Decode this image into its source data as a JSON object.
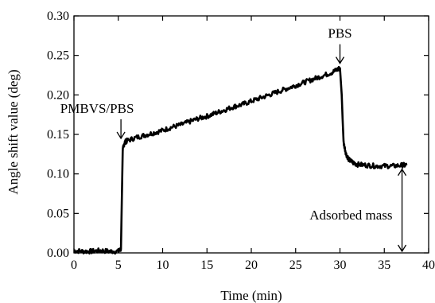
{
  "chart_data": {
    "type": "line",
    "xlabel": "Time (min)",
    "ylabel": "Angle shift value (deg)",
    "xlim": [
      0,
      40
    ],
    "ylim": [
      0,
      0.3
    ],
    "x_ticks": [
      "0",
      "5",
      "10",
      "15",
      "20",
      "25",
      "30",
      "35",
      "40"
    ],
    "y_ticks": [
      "0.00",
      "0.05",
      "0.10",
      "0.15",
      "0.20",
      "0.25",
      "0.30"
    ],
    "grid": false,
    "legend": "none",
    "line_color": "#000000",
    "series": [
      {
        "x": [
          0,
          1,
          2,
          3,
          4,
          5,
          5.3,
          5.5,
          5.7,
          6,
          7,
          8,
          9,
          10,
          11,
          12,
          13,
          14,
          15,
          16,
          17,
          18,
          19,
          20,
          21,
          22,
          23,
          24,
          25,
          26,
          27,
          28,
          29,
          29.7,
          30.0,
          30.2,
          30.4,
          30.7,
          31,
          31.5,
          32,
          33,
          34,
          35,
          36,
          37,
          37.5
        ],
        "y": [
          0.003,
          0.002,
          0.002,
          0.003,
          0.002,
          0.002,
          0.005,
          0.13,
          0.14,
          0.142,
          0.146,
          0.149,
          0.152,
          0.155,
          0.159,
          0.162,
          0.166,
          0.17,
          0.173,
          0.177,
          0.181,
          0.185,
          0.188,
          0.192,
          0.196,
          0.2,
          0.204,
          0.208,
          0.212,
          0.216,
          0.22,
          0.224,
          0.228,
          0.232,
          0.234,
          0.2,
          0.14,
          0.125,
          0.118,
          0.114,
          0.112,
          0.111,
          0.11,
          0.11,
          0.11,
          0.111,
          0.111
        ]
      }
    ],
    "annotations": [
      {
        "text": "PMBVS/PBS",
        "x": 5.3,
        "y": 0.145
      },
      {
        "text": "PBS",
        "x": 30.0,
        "y": 0.24
      },
      {
        "text": "Adsorbed mass",
        "x": 37.0,
        "y_from": 0.0,
        "y_to": 0.11
      }
    ]
  }
}
